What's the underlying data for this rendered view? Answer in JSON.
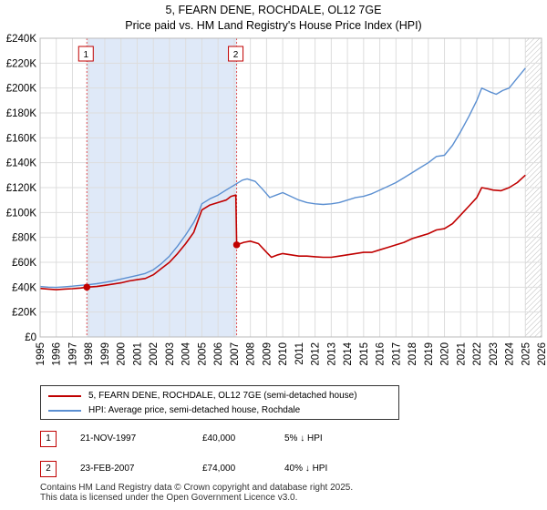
{
  "title_line1": "5, FEARN DENE, ROCHDALE, OL12 7GE",
  "title_line2": "Price paid vs. HM Land Registry's House Price Index (HPI)",
  "chart_data": {
    "type": "line",
    "x_range": [
      1995,
      2026
    ],
    "y_range": [
      0,
      240000
    ],
    "y_ticks": [
      {
        "value": 0,
        "label": "£0"
      },
      {
        "value": 20000,
        "label": "£20K"
      },
      {
        "value": 40000,
        "label": "£40K"
      },
      {
        "value": 60000,
        "label": "£60K"
      },
      {
        "value": 80000,
        "label": "£80K"
      },
      {
        "value": 100000,
        "label": "£100K"
      },
      {
        "value": 120000,
        "label": "£120K"
      },
      {
        "value": 140000,
        "label": "£140K"
      },
      {
        "value": 160000,
        "label": "£160K"
      },
      {
        "value": 180000,
        "label": "£180K"
      },
      {
        "value": 200000,
        "label": "£200K"
      },
      {
        "value": 220000,
        "label": "£220K"
      },
      {
        "value": 240000,
        "label": "£240K"
      }
    ],
    "x_ticks": [
      "1995",
      "1996",
      "1997",
      "1998",
      "1999",
      "2000",
      "2001",
      "2002",
      "2003",
      "2004",
      "2005",
      "2006",
      "2007",
      "2008",
      "2009",
      "2010",
      "2011",
      "2012",
      "2013",
      "2014",
      "2015",
      "2016",
      "2017",
      "2018",
      "2019",
      "2020",
      "2021",
      "2022",
      "2023",
      "2024",
      "2025",
      "2026"
    ],
    "grid": true,
    "shaded_period": [
      1997.89,
      2007.15
    ],
    "forecast_hatch_from": 2025.0,
    "series": [
      {
        "name": "5, FEARN DENE, ROCHDALE, OL12 7GE (semi-detached house)",
        "color": "#c00000",
        "points": [
          [
            1995.0,
            39000
          ],
          [
            1995.5,
            38500
          ],
          [
            1996.0,
            38000
          ],
          [
            1996.5,
            38500
          ],
          [
            1997.0,
            38800
          ],
          [
            1997.5,
            39300
          ],
          [
            1997.89,
            40000
          ],
          [
            1998.5,
            40500
          ],
          [
            1999.0,
            41500
          ],
          [
            1999.5,
            42500
          ],
          [
            2000.0,
            43500
          ],
          [
            2000.5,
            45000
          ],
          [
            2001.0,
            46000
          ],
          [
            2001.5,
            47000
          ],
          [
            2002.0,
            50000
          ],
          [
            2002.5,
            55000
          ],
          [
            2003.0,
            60000
          ],
          [
            2003.5,
            67000
          ],
          [
            2004.0,
            75000
          ],
          [
            2004.5,
            84000
          ],
          [
            2004.8,
            95000
          ],
          [
            2005.0,
            102000
          ],
          [
            2005.5,
            106000
          ],
          [
            2006.0,
            108000
          ],
          [
            2006.5,
            110000
          ],
          [
            2006.8,
            113000
          ],
          [
            2007.1,
            114000
          ],
          [
            2007.15,
            74000
          ],
          [
            2007.6,
            76000
          ],
          [
            2008.0,
            77000
          ],
          [
            2008.5,
            75000
          ],
          [
            2009.0,
            68000
          ],
          [
            2009.3,
            64000
          ],
          [
            2009.7,
            66000
          ],
          [
            2010.0,
            67000
          ],
          [
            2010.5,
            66000
          ],
          [
            2011.0,
            65000
          ],
          [
            2011.5,
            65000
          ],
          [
            2012.0,
            64500
          ],
          [
            2012.5,
            64000
          ],
          [
            2013.0,
            64000
          ],
          [
            2013.5,
            65000
          ],
          [
            2014.0,
            66000
          ],
          [
            2014.5,
            67000
          ],
          [
            2015.0,
            68000
          ],
          [
            2015.5,
            68000
          ],
          [
            2016.0,
            70000
          ],
          [
            2016.5,
            72000
          ],
          [
            2017.0,
            74000
          ],
          [
            2017.5,
            76000
          ],
          [
            2018.0,
            79000
          ],
          [
            2018.5,
            81000
          ],
          [
            2019.0,
            83000
          ],
          [
            2019.5,
            86000
          ],
          [
            2020.0,
            87000
          ],
          [
            2020.5,
            91000
          ],
          [
            2021.0,
            98000
          ],
          [
            2021.5,
            105000
          ],
          [
            2022.0,
            112000
          ],
          [
            2022.3,
            120000
          ],
          [
            2022.7,
            119000
          ],
          [
            2023.0,
            118000
          ],
          [
            2023.5,
            117500
          ],
          [
            2024.0,
            120000
          ],
          [
            2024.5,
            124000
          ],
          [
            2025.0,
            130000
          ]
        ]
      },
      {
        "name": "HPI: Average price, semi-detached house, Rochdale",
        "color": "#5b8fd1",
        "points": [
          [
            1995.0,
            40500
          ],
          [
            1995.5,
            40000
          ],
          [
            1996.0,
            39800
          ],
          [
            1996.5,
            40300
          ],
          [
            1997.0,
            40800
          ],
          [
            1997.5,
            41500
          ],
          [
            1998.0,
            42000
          ],
          [
            1998.5,
            42800
          ],
          [
            1999.0,
            43800
          ],
          [
            1999.5,
            45000
          ],
          [
            2000.0,
            46500
          ],
          [
            2000.5,
            48000
          ],
          [
            2001.0,
            49500
          ],
          [
            2001.5,
            51000
          ],
          [
            2002.0,
            54000
          ],
          [
            2002.5,
            59000
          ],
          [
            2003.0,
            65000
          ],
          [
            2003.5,
            73000
          ],
          [
            2004.0,
            82000
          ],
          [
            2004.5,
            92000
          ],
          [
            2004.8,
            100000
          ],
          [
            2005.0,
            107000
          ],
          [
            2005.5,
            111000
          ],
          [
            2006.0,
            114000
          ],
          [
            2006.5,
            118000
          ],
          [
            2007.0,
            122000
          ],
          [
            2007.5,
            126000
          ],
          [
            2007.8,
            127000
          ],
          [
            2008.3,
            125000
          ],
          [
            2008.8,
            118000
          ],
          [
            2009.2,
            112000
          ],
          [
            2009.6,
            114000
          ],
          [
            2010.0,
            116000
          ],
          [
            2010.5,
            113000
          ],
          [
            2011.0,
            110000
          ],
          [
            2011.5,
            108000
          ],
          [
            2012.0,
            107000
          ],
          [
            2012.5,
            106500
          ],
          [
            2013.0,
            107000
          ],
          [
            2013.5,
            108000
          ],
          [
            2014.0,
            110000
          ],
          [
            2014.5,
            112000
          ],
          [
            2015.0,
            113000
          ],
          [
            2015.5,
            115000
          ],
          [
            2016.0,
            118000
          ],
          [
            2016.5,
            121000
          ],
          [
            2017.0,
            124000
          ],
          [
            2017.5,
            128000
          ],
          [
            2018.0,
            132000
          ],
          [
            2018.5,
            136000
          ],
          [
            2019.0,
            140000
          ],
          [
            2019.5,
            145000
          ],
          [
            2020.0,
            146000
          ],
          [
            2020.5,
            154000
          ],
          [
            2021.0,
            165000
          ],
          [
            2021.5,
            177000
          ],
          [
            2022.0,
            190000
          ],
          [
            2022.3,
            200000
          ],
          [
            2022.8,
            197000
          ],
          [
            2023.2,
            195000
          ],
          [
            2023.6,
            198000
          ],
          [
            2024.0,
            200000
          ],
          [
            2024.5,
            208000
          ],
          [
            2025.0,
            216000
          ]
        ]
      }
    ],
    "sales": [
      {
        "id": "1",
        "x": 1997.89,
        "value": 40000
      },
      {
        "id": "2",
        "x": 2007.15,
        "value": 74000
      }
    ]
  },
  "legend": {
    "property_label": "5, FEARN DENE, ROCHDALE, OL12 7GE (semi-detached house)",
    "hpi_label": "HPI: Average price, semi-detached house, Rochdale"
  },
  "sales_table": [
    {
      "id": "1",
      "date": "21-NOV-1997",
      "price": "£40,000",
      "hpi": "5% ↓ HPI"
    },
    {
      "id": "2",
      "date": "23-FEB-2007",
      "price": "£74,000",
      "hpi": "40% ↓ HPI"
    }
  ],
  "colors": {
    "property": "#c00000",
    "hpi": "#5b8fd1",
    "shade": "#dfe9f8",
    "grid": "#dddddd"
  },
  "footer_line1": "Contains HM Land Registry data © Crown copyright and database right 2025.",
  "footer_line2": "This data is licensed under the Open Government Licence v3.0."
}
